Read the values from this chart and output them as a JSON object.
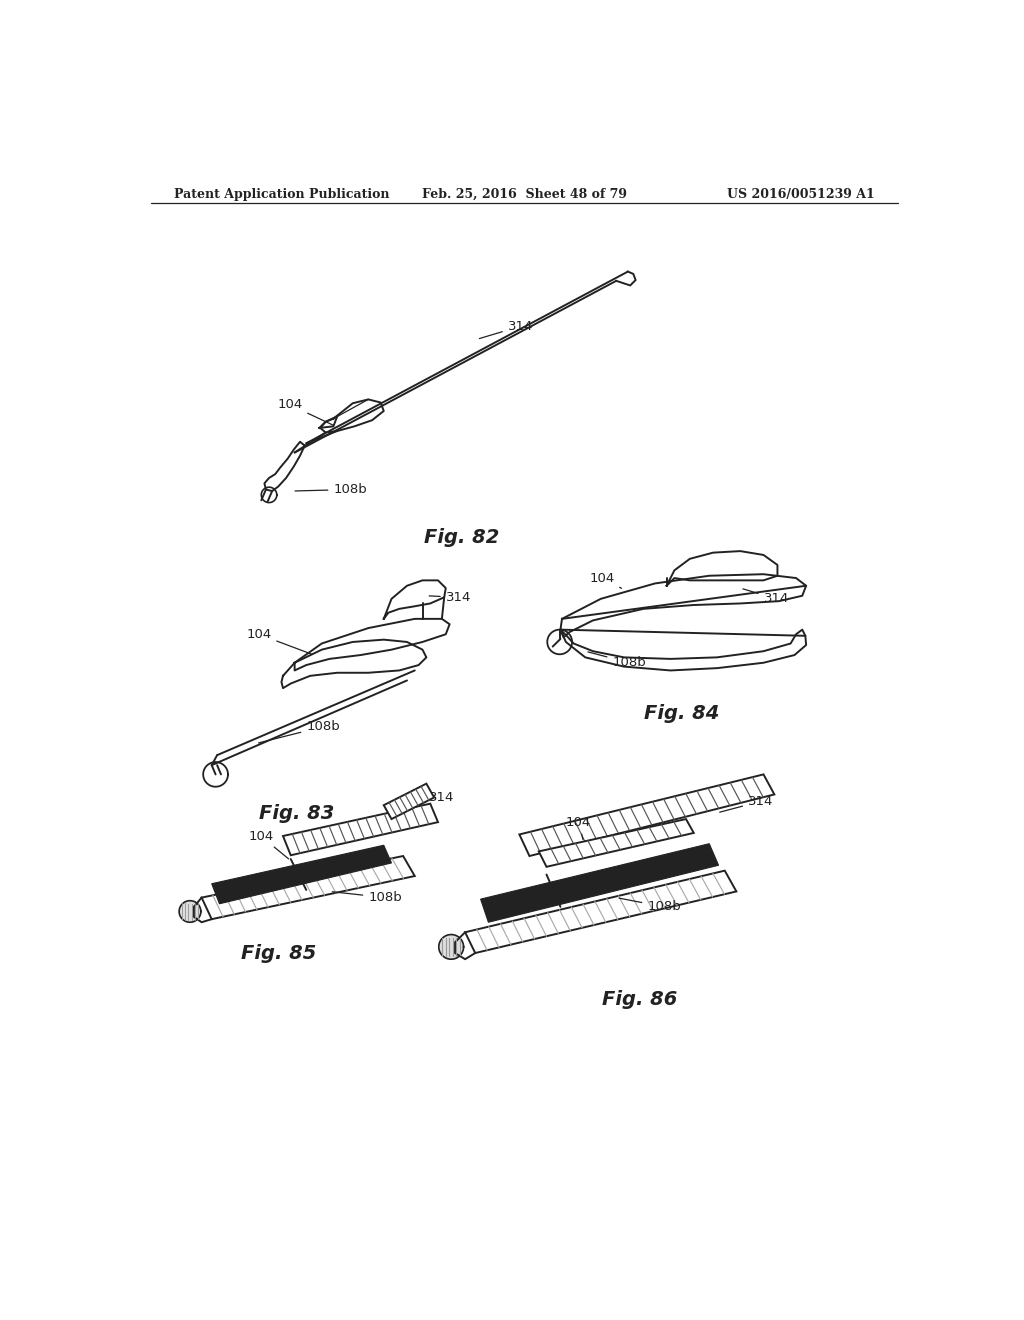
{
  "background_color": "#ffffff",
  "header_left": "Patent Application Publication",
  "header_mid": "Feb. 25, 2016  Sheet 48 of 79",
  "header_right": "US 2016/0051239 A1",
  "line_color": "#222222",
  "fig_label_fontsize": 14,
  "annot_fontsize": 9.5
}
